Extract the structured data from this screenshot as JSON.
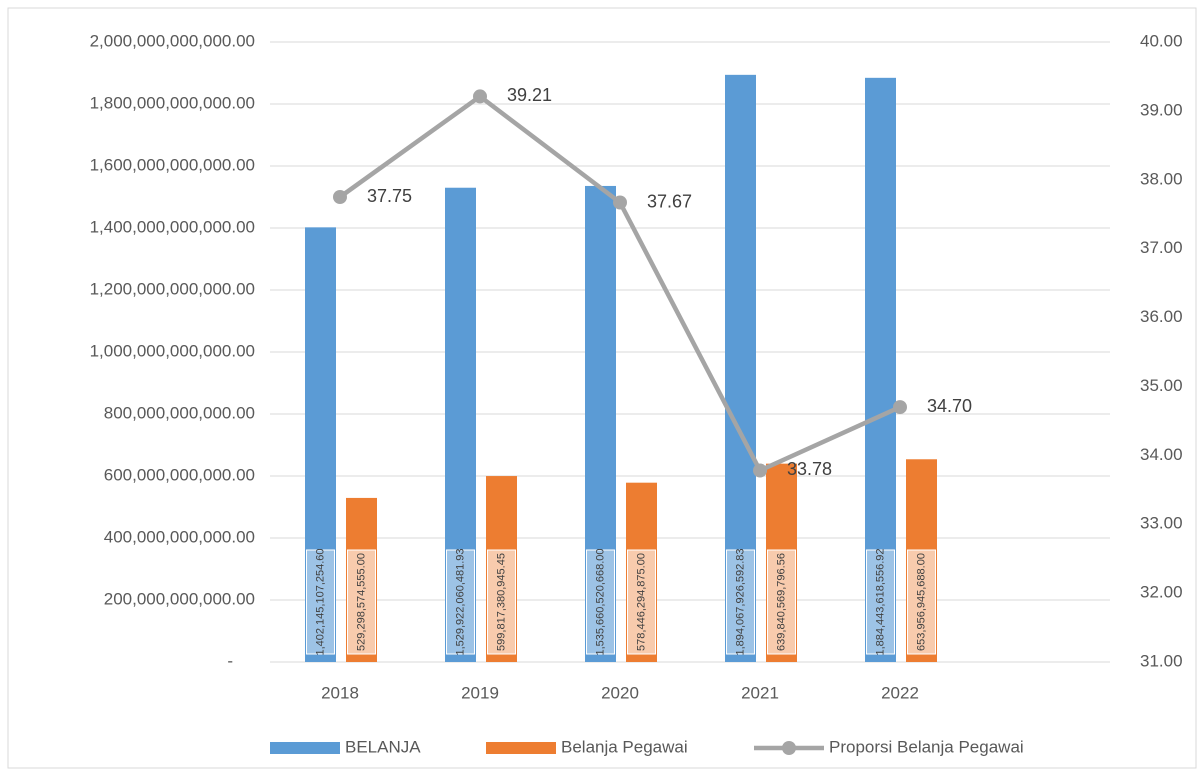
{
  "chart_data": {
    "type": "bar_line",
    "categories": [
      "2018",
      "2019",
      "2020",
      "2021",
      "2022",
      null
    ],
    "series": [
      {
        "name": "BELANJA",
        "color": "#5b9bd5",
        "type": "bar",
        "values": [
          1402145107254.6,
          1529922060481.93,
          1535660520668.0,
          1894067926592.83,
          1884443618556.92,
          null
        ],
        "value_labels": [
          "1,402,145,107,254.60",
          "1,529,922,060,481.93",
          "1,535,660,520,668.00",
          "1,894,067,926,592.83",
          "1,884,443,618,556.92",
          null
        ]
      },
      {
        "name": "Belanja Pegawai",
        "color": "#ed7d31",
        "type": "bar",
        "values": [
          529298574555.0,
          599817380945.45,
          578446294875.0,
          639840569796.56,
          653956945688.0,
          null
        ],
        "value_labels": [
          "529,298,574,555.00",
          "599,817,380,945.45",
          "578,446,294,875.00",
          "639,840,569,796.56",
          "653,956,945,688.00",
          null
        ]
      },
      {
        "name": "Proporsi Belanja Pegawai",
        "color": "#a5a5a5",
        "type": "line",
        "axis": "y2",
        "values": [
          37.75,
          39.21,
          37.67,
          33.78,
          34.7,
          null
        ],
        "value_labels": [
          "37.75",
          "39.21",
          "37.67",
          "33.78",
          "34.70",
          null
        ]
      }
    ],
    "ylim": [
      0,
      2000000000000
    ],
    "yticks": [
      {
        "value": 0,
        "label": "-"
      },
      {
        "value": 200000000000,
        "label": "200,000,000,000.00"
      },
      {
        "value": 400000000000,
        "label": "400,000,000,000.00"
      },
      {
        "value": 600000000000,
        "label": "600,000,000,000.00"
      },
      {
        "value": 800000000000,
        "label": "800,000,000,000.00"
      },
      {
        "value": 1000000000000,
        "label": "1,000,000,000,000.00"
      },
      {
        "value": 1200000000000,
        "label": "1,200,000,000,000.00"
      },
      {
        "value": 1400000000000,
        "label": "1,400,000,000,000.00"
      },
      {
        "value": 1600000000000,
        "label": "1,600,000,000,000.00"
      },
      {
        "value": 1800000000000,
        "label": "1,800,000,000,000.00"
      },
      {
        "value": 2000000000000,
        "label": "2,000,000,000,000.00"
      }
    ],
    "y2lim": [
      31,
      40
    ],
    "y2ticks": [
      {
        "value": 31,
        "label": "31.00"
      },
      {
        "value": 32,
        "label": "32.00"
      },
      {
        "value": 33,
        "label": "33.00"
      },
      {
        "value": 34,
        "label": "34.00"
      },
      {
        "value": 35,
        "label": "35.00"
      },
      {
        "value": 36,
        "label": "36.00"
      },
      {
        "value": 37,
        "label": "37.00"
      },
      {
        "value": 38,
        "label": "38.00"
      },
      {
        "value": 39,
        "label": "39.00"
      },
      {
        "value": 40,
        "label": "40.00"
      }
    ],
    "grid": true,
    "legend": "bottom"
  }
}
